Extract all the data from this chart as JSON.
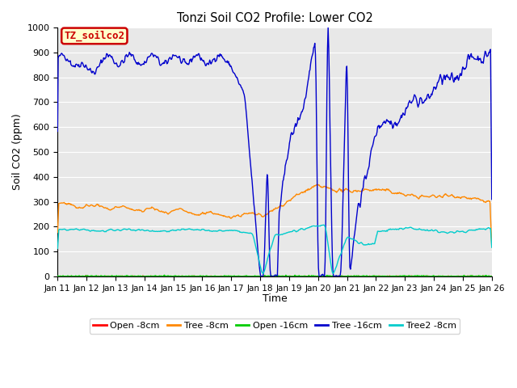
{
  "title": "Tonzi Soil CO2 Profile: Lower CO2",
  "ylabel": "Soil CO2 (ppm)",
  "xlabel": "Time",
  "ylim": [
    0,
    1000
  ],
  "xlim": [
    0,
    360
  ],
  "plot_bg_color": "#e8e8e8",
  "fig_bg_color": "#ffffff",
  "annotation_text": "TZ_soilco2",
  "annotation_bg": "#ffffcc",
  "annotation_border": "#cc0000",
  "annotation_text_color": "#cc0000",
  "series": [
    {
      "label": "Open -8cm",
      "color": "#ff0000",
      "lw": 1.0
    },
    {
      "label": "Tree -8cm",
      "color": "#ff8800",
      "lw": 1.0
    },
    {
      "label": "Open -16cm",
      "color": "#00cc00",
      "lw": 1.2
    },
    {
      "label": "Tree -16cm",
      "color": "#0000cc",
      "lw": 1.0
    },
    {
      "label": "Tree2 -8cm",
      "color": "#00cccc",
      "lw": 1.0
    }
  ],
  "xtick_labels": [
    "Jan 11",
    "Jan 12",
    "Jan 13",
    "Jan 14",
    "Jan 15",
    "Jan 16",
    "Jan 17",
    "Jan 18",
    "Jan 19",
    "Jan 20",
    "Jan 21",
    "Jan 22",
    "Jan 23",
    "Jan 24",
    "Jan 25",
    "Jan 26"
  ],
  "xtick_positions": [
    0,
    24,
    48,
    72,
    96,
    120,
    144,
    168,
    192,
    216,
    240,
    264,
    288,
    312,
    336,
    360
  ],
  "ytick_positions": [
    0,
    100,
    200,
    300,
    400,
    500,
    600,
    700,
    800,
    900,
    1000
  ]
}
